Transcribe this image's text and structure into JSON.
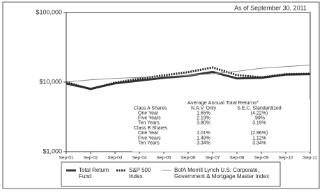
{
  "chart_data": {
    "type": "line",
    "title": "As of September 30, 2011",
    "categories": [
      "Sep-01",
      "Sep-02",
      "Sep-03",
      "Sep-04",
      "Sep-05",
      "Sep-06",
      "Sep-07",
      "Sep-08",
      "Sep-09",
      "Sep-10",
      "Sep-11"
    ],
    "log_scale": true,
    "ylim": [
      1000,
      100000
    ],
    "yticks": [
      {
        "value": 1000,
        "label": "$1,000"
      },
      {
        "value": 10000,
        "label": "$10,000"
      },
      {
        "value": 100000,
        "label": "$100,000"
      }
    ],
    "series": [
      {
        "name": "Total Return Fund",
        "color": "#333333",
        "line_width": 3,
        "dash": "none",
        "values": [
          9550,
          8000,
          9600,
          10500,
          11500,
          12300,
          14000,
          11300,
          11500,
          12800,
          13000
        ]
      },
      {
        "name": "S&P 500 Index",
        "color": "#222222",
        "line_width": 3,
        "dash": "2 1.5",
        "values": [
          10000,
          7900,
          9800,
          11200,
          12500,
          13900,
          16200,
          12600,
          11700,
          13000,
          13200
        ]
      },
      {
        "name": "BofA Merrill Lynch U.S. Corporate, Government & Mortgage Master Index",
        "color": "#888888",
        "line_width": 1,
        "dash": "none",
        "values": [
          10000,
          10800,
          11300,
          11700,
          12000,
          12500,
          13200,
          14300,
          15800,
          16700,
          17600
        ]
      }
    ],
    "returns_table": {
      "title": "Average Annual Total Returns*",
      "columns": [
        "Class A Shares",
        "N.A.V. Only",
        "S.E.C. Standardized"
      ],
      "rows": [
        [
          "One Year",
          "1.65%",
          "(4.22%)"
        ],
        [
          "Five Years",
          "2.19%",
          ".99%"
        ],
        [
          "Ten Years",
          "3.80%",
          "3.19%"
        ],
        [
          "Class B Shares",
          "",
          ""
        ],
        [
          "One Year",
          "1.01%",
          "(2.96%)"
        ],
        [
          "Five Years",
          "1.49%",
          "1.12%"
        ],
        [
          "Ten Years",
          "3.34%",
          "3.34%"
        ]
      ]
    }
  }
}
